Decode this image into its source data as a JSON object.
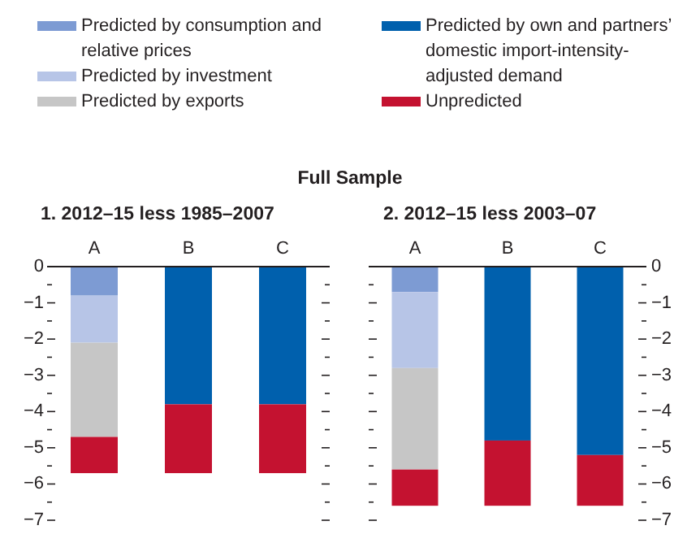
{
  "chart_data": [
    {
      "type": "other",
      "title": "Full Sample"
    },
    {
      "type": "bar",
      "title": "1. 2012–15 less 1985–2007",
      "categories": [
        "A",
        "B",
        "C"
      ],
      "stacked": true,
      "legend": "top",
      "series": [
        {
          "name": "Predicted by consumption and relative prices",
          "color": "#7d9bd3",
          "values": [
            -0.8,
            null,
            null
          ]
        },
        {
          "name": "Predicted by investment",
          "color": "#b7c5e7",
          "values": [
            -1.3,
            null,
            null
          ]
        },
        {
          "name": "Predicted by exports",
          "color": "#c6c6c6",
          "values": [
            -2.6,
            null,
            null
          ]
        },
        {
          "name": "Predicted by own and partners’ domestic import-intensity-adjusted demand",
          "color": "#0060ad",
          "values": [
            null,
            -3.8,
            -3.8
          ]
        },
        {
          "name": "Unpredicted",
          "color": "#c41230",
          "values": [
            -1.0,
            -1.9,
            -1.9
          ]
        }
      ],
      "ylim": [
        -7,
        0
      ],
      "yticks": [
        0,
        {
          "value": -0.5,
          "label": null
        },
        {
          "value": -1,
          "label": "−1"
        },
        {
          "value": -1.5,
          "label": null
        },
        {
          "value": -2,
          "label": "−2"
        },
        {
          "value": -2.5,
          "label": null
        },
        {
          "value": -3,
          "label": "−3"
        },
        {
          "value": -3.5,
          "label": null
        },
        {
          "value": -4,
          "label": "−4"
        },
        {
          "value": -4.5,
          "label": null
        },
        {
          "value": -5,
          "label": "−5"
        },
        {
          "value": -5.5,
          "label": null
        },
        {
          "value": -6,
          "label": "−6"
        },
        {
          "value": -6.5,
          "label": null
        },
        {
          "value": -7,
          "label": "−7"
        }
      ]
    },
    {
      "type": "bar",
      "title": "2. 2012–15 less 2003–07",
      "categories": [
        "A",
        "B",
        "C"
      ],
      "stacked": true,
      "series": [
        {
          "color": "#7d9bd3",
          "values": [
            -0.7,
            null,
            null
          ],
          "axis": "y2"
        },
        {
          "color": "#b7c5e7",
          "values": [
            -2.1,
            null,
            null
          ],
          "axis": "y2"
        },
        {
          "color": "#c6c6c6",
          "values": [
            -2.8,
            null,
            null
          ],
          "axis": "y2"
        },
        {
          "color": "#0060ad",
          "values": [
            null,
            -4.8,
            -5.2
          ],
          "axis": "y2"
        },
        {
          "color": "#c41230",
          "values": [
            -1.0,
            -1.8,
            -1.4
          ],
          "axis": "y2"
        }
      ],
      "y2lim": [
        -7,
        0
      ],
      "y2ticks": [
        0,
        {
          "value": -0.5,
          "label": null
        },
        {
          "value": -1,
          "label": "−1"
        },
        {
          "value": -1.5,
          "label": null
        },
        {
          "value": -2,
          "label": "−2"
        },
        {
          "value": -2.5,
          "label": null
        },
        {
          "value": -3,
          "label": "−3"
        },
        {
          "value": -3.5,
          "label": null
        },
        {
          "value": -4,
          "label": "−4"
        },
        {
          "value": -4.5,
          "label": null
        },
        {
          "value": -5,
          "label": "−5"
        },
        {
          "value": -5.5,
          "label": null
        },
        {
          "value": -6,
          "label": "−6"
        },
        {
          "value": -6.5,
          "label": null
        },
        {
          "value": -7,
          "label": "−7"
        }
      ]
    }
  ]
}
